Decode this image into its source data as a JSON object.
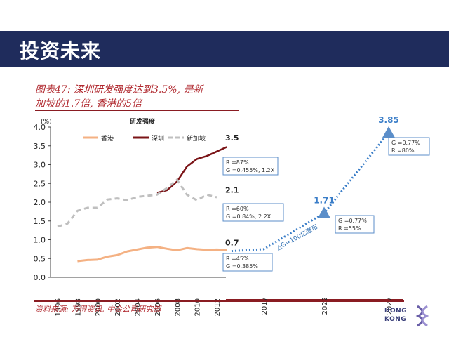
{
  "header": {
    "title": "投资未来"
  },
  "subtitle": {
    "line1": "图表47: 深圳研发强度达到3.5%, 是新",
    "line2": "加坡的1.7倍, 香港的5倍"
  },
  "source": "资料来源: 万得资讯, 中金公司研究部",
  "logo": {
    "line1": "HONG",
    "line2": "KONG"
  },
  "colors": {
    "hongkong": "#f4b183",
    "shenzhen": "#7b1417",
    "singapore": "#bfbfbf",
    "projection": "#3b7ec8",
    "marker": "#5b8ec9"
  },
  "chart_data": {
    "type": "line",
    "title": "研发强度",
    "ylabel": "(%)",
    "ylim": [
      0,
      4.0
    ],
    "yticks": [
      "0.0",
      "0.5",
      "1.0",
      "1.5",
      "2.0",
      "2.5",
      "3.0",
      "3.5",
      "4.0"
    ],
    "xticks": [
      "1996",
      "1998",
      "2000",
      "2002",
      "2004",
      "2006",
      "2008",
      "2010",
      "2012",
      "2017",
      "2022",
      "2027"
    ],
    "series": [
      {
        "name": "香港",
        "x": [
          1998,
          1999,
          2000,
          2001,
          2002,
          2003,
          2004,
          2005,
          2006,
          2007,
          2008,
          2009,
          2010,
          2011,
          2012,
          2013
        ],
        "values": [
          0.43,
          0.46,
          0.47,
          0.55,
          0.59,
          0.69,
          0.74,
          0.79,
          0.81,
          0.76,
          0.72,
          0.78,
          0.75,
          0.73,
          0.74,
          0.73
        ]
      },
      {
        "name": "深圳",
        "x": [
          2006,
          2007,
          2008,
          2009,
          2010,
          2011,
          2012,
          2013
        ],
        "values": [
          2.25,
          2.32,
          2.55,
          2.95,
          3.15,
          3.23,
          3.35,
          3.47
        ]
      },
      {
        "name": "新加坡",
        "x": [
          1996,
          1997,
          1998,
          1999,
          2000,
          2001,
          2002,
          2003,
          2004,
          2005,
          2006,
          2007,
          2008,
          2009,
          2010,
          2011,
          2012
        ],
        "values": [
          1.35,
          1.43,
          1.77,
          1.85,
          1.85,
          2.07,
          2.1,
          2.05,
          2.14,
          2.17,
          2.2,
          2.38,
          2.6,
          2.2,
          2.05,
          2.2,
          2.13
        ]
      }
    ],
    "projection": {
      "x": [
        "2013",
        "2017",
        "2022",
        "2027"
      ],
      "values": [
        0.7,
        0.75,
        1.71,
        3.85
      ],
      "arrow_label": "△G=100亿港币"
    },
    "value_labels": [
      {
        "text": "3.5",
        "x": 2013,
        "y": 3.5
      },
      {
        "text": "2.1",
        "x": 2013,
        "y": 2.1
      },
      {
        "text": "0.7",
        "x": 2013,
        "y": 0.7
      },
      {
        "text": "1.71",
        "x": 2022,
        "y": 1.71
      },
      {
        "text": "3.85",
        "x": 2027,
        "y": 3.85
      }
    ],
    "annotations": [
      {
        "lines": [
          "R =87%",
          "G =0.455%, 1.2X"
        ]
      },
      {
        "lines": [
          "R =60%",
          "G =0.84%, 2.2X"
        ]
      },
      {
        "lines": [
          "R =45%",
          "G =0.385%"
        ]
      },
      {
        "lines": [
          "G =0.77%",
          "R =55%"
        ]
      },
      {
        "lines": [
          "G =0.77%",
          "R =80%"
        ]
      }
    ],
    "legend": "top"
  }
}
